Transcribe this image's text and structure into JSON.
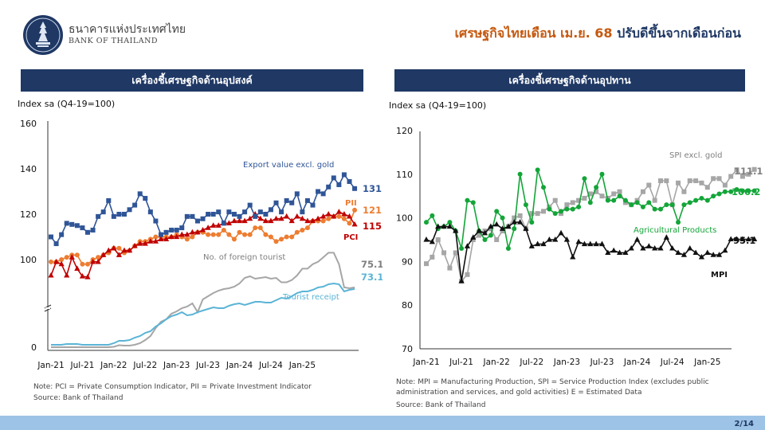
{
  "header": {
    "bank_name_th": "ธนาคารแห่งประเทศไทย",
    "bank_name_en": "BANK OF THAILAND",
    "headline_part1": "เศรษฐกิจไทยเดือน เม.ย. 68",
    "headline_part2": " ปรับดีขึ้นจากเดือนก่อน"
  },
  "left_panel": {
    "title": "เครื่องชี้เศรษฐกิจด้านอุปสงค์",
    "axis_title": "Index sa (Q4-19=100)",
    "note": "Note: PCI = Private Consumption Indicator, PII = Private Investment Indicator",
    "source": "Source: Bank of Thailand"
  },
  "right_panel": {
    "title": "เครื่องชี้เศรษฐกิจด้านอุปทาน",
    "axis_title": "Index sa (Q4-19=100)",
    "note": "Note: MPI = Manufacturing Production, SPI = Service Production Index (excludes public administration and services, and gold activities)  E = Estimated Data",
    "source": "Source: Bank of Thailand"
  },
  "footer": {
    "page": "2/14"
  },
  "colors": {
    "header_bar": "#1f3864",
    "export": "#2f5597",
    "pii": "#ed7d31",
    "pci": "#c00000",
    "foreign_tourist": "#a6a6a6",
    "tourist_receipt": "#5bb4d6",
    "spi": "#a6a6a6",
    "agri": "#13a538",
    "mpi": "#111111",
    "footer": "#9dc3e6"
  },
  "chart_data": [
    {
      "type": "line",
      "x_tick_labels": [
        "Jan-21",
        "Jul-21",
        "Jan-22",
        "Jul-22",
        "Jan-23",
        "Jul-23",
        "Jan-24",
        "Jul-24",
        "Jan-25"
      ],
      "y_tick_labels": [
        "0",
        "100",
        "120",
        "140",
        "160"
      ],
      "axis_break": true,
      "ylim": [
        0,
        160
      ],
      "x_start": "2021-01",
      "series": [
        {
          "name": "Export value excl. gold",
          "color_key": "export",
          "marker": "square",
          "label_value": "131.3",
          "values": [
            110,
            107,
            111,
            116,
            115.5,
            115,
            114,
            112,
            113,
            119,
            121,
            126,
            119,
            120,
            120,
            122,
            124,
            129,
            127,
            121,
            117,
            111,
            112,
            113,
            113,
            114,
            119,
            119,
            117,
            118,
            120,
            120,
            121,
            116,
            121,
            120,
            119,
            121,
            124,
            119,
            121,
            120,
            122,
            125,
            121,
            126,
            125,
            129,
            121,
            126,
            124,
            130,
            129,
            132,
            136,
            133,
            137.4,
            134.4,
            131.3
          ]
        },
        {
          "name": "PII",
          "color_key": "pii",
          "marker": "circle",
          "label_value": "121.8",
          "values": [
            99,
            99,
            100,
            101,
            102,
            102,
            98,
            98,
            100,
            101,
            102,
            103,
            105,
            105,
            103,
            104,
            106,
            108,
            108,
            109,
            110,
            110,
            110,
            110,
            111,
            110,
            109,
            110,
            112,
            112,
            111,
            111,
            111,
            113,
            111,
            109,
            112,
            111,
            111,
            114,
            114,
            111,
            110,
            108,
            109,
            110,
            110,
            112,
            113,
            114,
            117,
            117,
            117,
            118,
            119,
            119,
            118,
            116,
            121.8
          ]
        },
        {
          "name": "PCI",
          "color_key": "pci",
          "marker": "triangle",
          "label_value": "115.5",
          "values": [
            93,
            99,
            98,
            93,
            101,
            96,
            89,
            88,
            99,
            99,
            102,
            104,
            105,
            102,
            104,
            104,
            106,
            107,
            107,
            108,
            108,
            109,
            109,
            110,
            110,
            111,
            111,
            112,
            112,
            113,
            114,
            115,
            115,
            116,
            116,
            117,
            117,
            117,
            118,
            120,
            118,
            117,
            117,
            118,
            118,
            119,
            117,
            119,
            118,
            117,
            117,
            118,
            119,
            120,
            119,
            121,
            120,
            119,
            115.5
          ]
        },
        {
          "name": "No. of foreign tourist",
          "color_key": "foreign_tourist",
          "marker": "none",
          "label_value": "75.1",
          "values": [
            0,
            0,
            0,
            0,
            0,
            0,
            0,
            0,
            0,
            0,
            0,
            0,
            0.5,
            2.5,
            2,
            2,
            3,
            5,
            9,
            14,
            24,
            32,
            35,
            42,
            45,
            49,
            51,
            55,
            44,
            60,
            64,
            68,
            71,
            73,
            74,
            76,
            80,
            87,
            89,
            86,
            87,
            88,
            86,
            87,
            90,
            90,
            91,
            93,
            96,
            96,
            98,
            99,
            101,
            103,
            103,
            98,
            75.1,
            74,
            75.1
          ]
        },
        {
          "name": "Tourist receipt",
          "color_key": "tourist_receipt",
          "marker": "none",
          "label_value": "73.1",
          "values": [
            3,
            3,
            3,
            4,
            4,
            4,
            3,
            3,
            3,
            3,
            3,
            3,
            5,
            8,
            8,
            9,
            12,
            14,
            18,
            20,
            26,
            30,
            35,
            39,
            41,
            44,
            40,
            41,
            44,
            46,
            48,
            50,
            49,
            49,
            52,
            54,
            55,
            53,
            55,
            57,
            57,
            56,
            56,
            59,
            62,
            61,
            64,
            68,
            70,
            70,
            72,
            75,
            76,
            79,
            80,
            79,
            70,
            72,
            73.1
          ]
        }
      ]
    },
    {
      "type": "line",
      "x_tick_labels": [
        "Jan-21",
        "Jul-21",
        "Jan-22",
        "Jul-22",
        "Jan-23",
        "Jul-23",
        "Jan-24",
        "Jul-24",
        "Jan-25"
      ],
      "y_tick_labels": [
        "70",
        "80",
        "90",
        "100",
        "110",
        "120"
      ],
      "ylim": [
        70,
        120
      ],
      "x_start": "2021-01",
      "series": [
        {
          "name": "SPI excl. gold",
          "color_key": "spi",
          "marker": "square",
          "label_value": "111.1",
          "values": [
            89.5,
            91,
            95,
            92,
            88.5,
            92,
            85.5,
            87,
            95,
            96,
            97,
            97.5,
            95,
            97,
            98,
            100,
            100.5,
            97.5,
            101,
            101,
            101.5,
            102.5,
            104,
            101,
            103,
            103.5,
            104,
            104.5,
            105.5,
            106,
            105,
            104.5,
            105.5,
            106,
            103.5,
            103,
            104,
            106,
            107.5,
            104,
            108.5,
            108.5,
            103,
            108,
            106,
            108.5,
            108.5,
            108,
            107,
            109,
            109,
            107.5,
            109.5,
            111,
            109.5,
            110,
            111.1
          ]
        },
        {
          "name": "Agricultural Products",
          "color_key": "agri",
          "marker": "circle",
          "label_value": "106.2",
          "values": [
            99,
            100.5,
            97.5,
            98,
            99,
            97,
            93,
            104,
            103.5,
            97,
            95,
            96,
            101.5,
            100,
            93,
            97.5,
            110,
            103,
            99,
            111,
            107,
            102,
            101,
            101.5,
            102,
            102,
            102.5,
            109,
            103.5,
            107,
            110,
            104,
            104,
            105,
            104,
            103,
            103.5,
            102.5,
            103.5,
            102,
            102,
            103,
            103,
            99,
            103,
            103.5,
            104,
            104.5,
            104,
            105,
            105.5,
            106,
            106,
            106.5,
            106.2,
            106.2,
            106.2
          ]
        },
        {
          "name": "MPI",
          "color_key": "mpi",
          "marker": "triangle",
          "label_value": "95.1",
          "values": [
            95,
            94.5,
            98,
            98,
            98,
            97,
            85.5,
            93.5,
            95.5,
            97,
            96.5,
            98,
            98.5,
            97.5,
            98,
            99,
            99,
            97.5,
            93.5,
            94,
            94,
            95,
            95,
            96.5,
            95,
            91,
            94.5,
            94,
            94,
            94,
            94,
            92,
            92.5,
            92,
            92,
            93,
            95,
            93,
            93.5,
            93,
            93,
            95.5,
            93,
            92,
            91.5,
            93,
            92,
            91,
            92,
            91.5,
            91.5,
            92.5,
            95.1,
            95.1,
            95.1,
            95.1,
            95.1
          ]
        }
      ]
    }
  ]
}
